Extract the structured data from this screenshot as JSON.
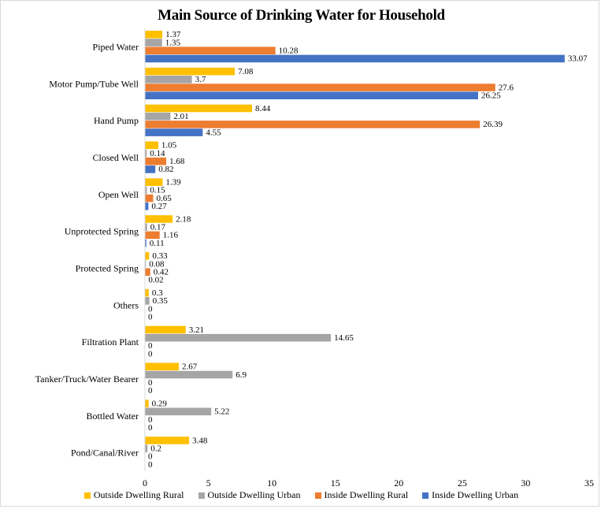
{
  "chart_data": {
    "type": "bar",
    "orientation": "horizontal",
    "title": "Main Source of Drinking Water for Household",
    "xlabel": "",
    "ylabel": "",
    "xlim": [
      0,
      35
    ],
    "x_ticks": [
      "0",
      "5",
      "10",
      "15",
      "20",
      "25",
      "30",
      "35"
    ],
    "grid": false,
    "legend_position": "bottom",
    "categories": [
      "Piped Water",
      "Motor Pump/Tube Well",
      "Hand Pump",
      "Closed Well",
      "Open Well",
      "Unprotected Spring",
      "Protected Spring",
      "Others",
      "Filtration Plant",
      "Tanker/Truck/Water Bearer",
      "Bottled Water",
      "Pond/Canal/River"
    ],
    "series": [
      {
        "name": "Outside Dwelling Rural",
        "color": "#FFC000",
        "values": [
          1.37,
          7.08,
          8.44,
          1.05,
          1.39,
          2.18,
          0.33,
          0.3,
          3.21,
          2.67,
          0.29,
          3.48
        ],
        "labels": [
          "1.37",
          "7.08",
          "8.44",
          "1.05",
          "1.39",
          "2.18",
          "0.33",
          "0.3",
          "3.21",
          "2.67",
          "0.29",
          "3.48"
        ]
      },
      {
        "name": "Outside Dwelling Urban",
        "color": "#A5A5A5",
        "values": [
          1.35,
          3.7,
          2.01,
          0.14,
          0.15,
          0.17,
          0.08,
          0.35,
          14.65,
          6.9,
          5.22,
          0.2
        ],
        "labels": [
          "1.35",
          "3.7",
          "2.01",
          "0.14",
          "0.15",
          "0.17",
          "0.08",
          "0.35",
          "14.65",
          "6.9",
          "5.22",
          "0.2"
        ]
      },
      {
        "name": "Inside Dwelling Rural",
        "color": "#ED7D31",
        "values": [
          10.28,
          27.6,
          26.39,
          1.68,
          0.65,
          1.16,
          0.42,
          0,
          0,
          0,
          0,
          0
        ],
        "labels": [
          "10.28",
          "27.6",
          "26.39",
          "1.68",
          "0.65",
          "1.16",
          "0.42",
          "0",
          "0",
          "0",
          "0",
          "0"
        ]
      },
      {
        "name": "Inside Dwelling Urban",
        "color": "#4472C4",
        "values": [
          33.07,
          26.25,
          4.55,
          0.82,
          0.27,
          0.11,
          0.02,
          0,
          0,
          0,
          0,
          0
        ],
        "labels": [
          "33.07",
          "26.25",
          "4.55",
          "0.82",
          "0.27",
          "0.11",
          "0.02",
          "0",
          "0",
          "0",
          "0",
          "0"
        ]
      }
    ]
  }
}
